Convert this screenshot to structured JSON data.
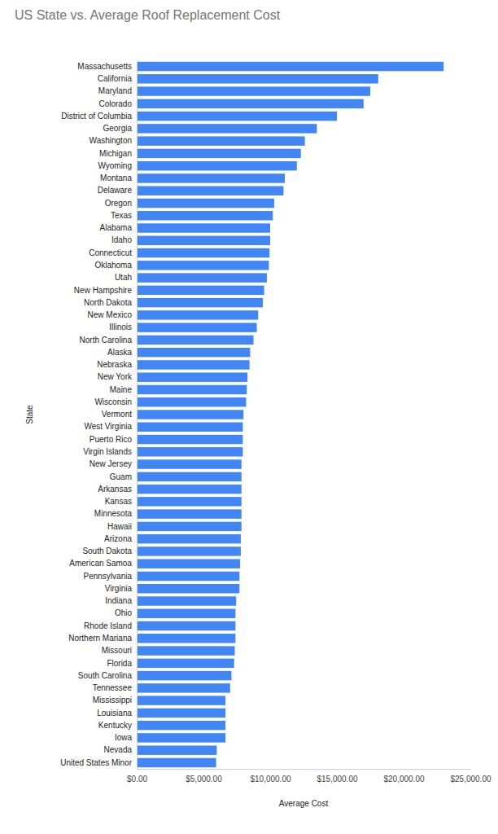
{
  "chart_data": {
    "type": "bar",
    "orientation": "horizontal",
    "title": "US State vs. Average Roof Replacement Cost",
    "x_label": "Average Cost",
    "y_label": "State",
    "categories": [
      "Massachusetts",
      "California",
      "Maryland",
      "Colorado",
      "District of Columbia",
      "Georgia",
      "Washington",
      "Michigan",
      "Wyoming",
      "Montana",
      "Delaware",
      "Oregon",
      "Texas",
      "Alabama",
      "Idaho",
      "Connecticut",
      "Oklahoma",
      "Utah",
      "New Hampshire",
      "North Dakota",
      "New Mexico",
      "Illinois",
      "North Carolina",
      "Alaska",
      "Nebraska",
      "New York",
      "Maine",
      "Wisconsin",
      "Vermont",
      "West Virginia",
      "Puerto Rico",
      "Virgin Islands",
      "New Jersey",
      "Guam",
      "Arkansas",
      "Kansas",
      "Minnesota",
      "Hawaii",
      "Arizona",
      "South Dakota",
      "American Samoa",
      "Pennsylvania",
      "Virginia",
      "Indiana",
      "Ohio",
      "Rhode Island",
      "Northern Mariana",
      "Missouri",
      "Florida",
      "South Carolina",
      "Tennessee",
      "Mississippi",
      "Louisiana",
      "Kentucky",
      "Iowa",
      "Nevada",
      "United States Minor"
    ],
    "values": [
      23000,
      18100,
      17500,
      17000,
      15000,
      13500,
      12600,
      12300,
      12000,
      11100,
      11000,
      10300,
      10200,
      10000,
      10000,
      9950,
      9900,
      9750,
      9550,
      9450,
      9100,
      9000,
      8750,
      8500,
      8450,
      8300,
      8250,
      8200,
      8000,
      7950,
      7950,
      7950,
      7850,
      7850,
      7850,
      7850,
      7850,
      7850,
      7800,
      7800,
      7750,
      7700,
      7700,
      7450,
      7400,
      7400,
      7400,
      7350,
      7300,
      7100,
      7000,
      6650,
      6650,
      6650,
      6650,
      6000,
      5950
    ],
    "color": "#4285f4",
    "xlim": [
      0,
      25000
    ],
    "xticks": [
      {
        "value": 0,
        "label": "$0.00"
      },
      {
        "value": 5000,
        "label": "$5,000.00"
      },
      {
        "value": 10000,
        "label": "$10,000.00"
      },
      {
        "value": 15000,
        "label": "$15,000.00"
      },
      {
        "value": 20000,
        "label": "$20,000.00"
      },
      {
        "value": 25000,
        "label": "$25,000.00"
      }
    ],
    "grid": false
  }
}
